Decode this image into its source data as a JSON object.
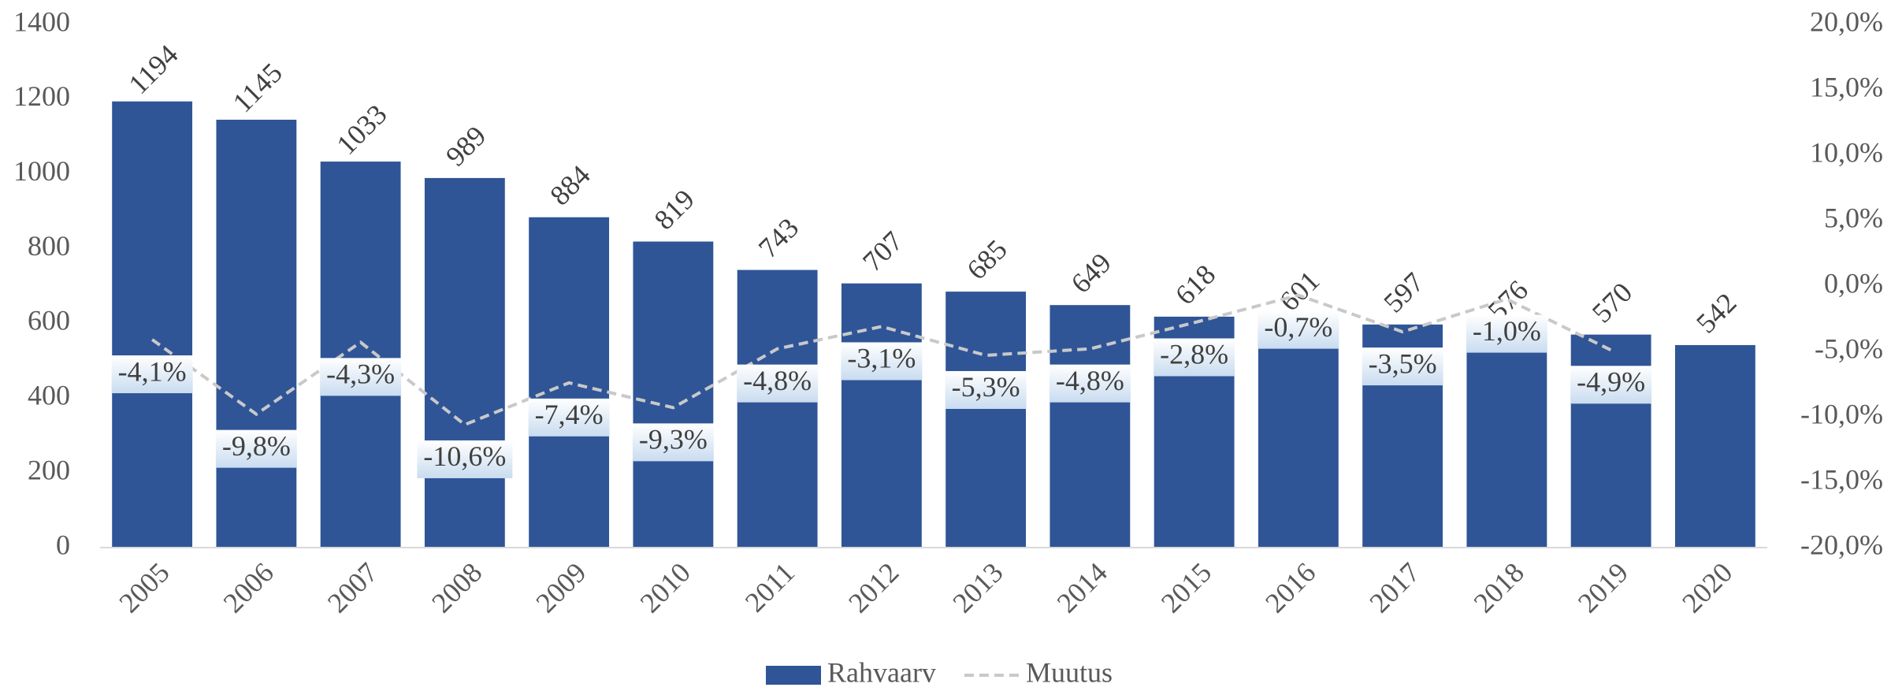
{
  "chart_data": {
    "type": "bar",
    "categories": [
      "2005",
      "2006",
      "2007",
      "2008",
      "2009",
      "2010",
      "2011",
      "2012",
      "2013",
      "2014",
      "2015",
      "2016",
      "2017",
      "2018",
      "2019",
      "2020"
    ],
    "series": [
      {
        "name": "Rahvaarv",
        "type": "bar",
        "color": "#2f5597",
        "values": [
          1194,
          1145,
          1033,
          989,
          884,
          819,
          743,
          707,
          685,
          649,
          618,
          601,
          597,
          576,
          570,
          542
        ]
      },
      {
        "name": "Muutus",
        "type": "line",
        "axis": "y2",
        "color": "#c9c9c9",
        "dashed": true,
        "values": [
          -4.1,
          -9.8,
          -4.3,
          -10.6,
          -7.4,
          -9.3,
          -4.8,
          -3.1,
          -5.3,
          -4.8,
          -2.8,
          -0.7,
          -3.5,
          -1.0,
          -4.9,
          null
        ],
        "value_labels": [
          "-4,1%",
          "-9,8%",
          "-4,3%",
          "-10,6%",
          "-7,4%",
          "-9,3%",
          "-4,8%",
          "-3,1%",
          "-5,3%",
          "-4,8%",
          "-2,8%",
          "-0,7%",
          "-3,5%",
          "-1,0%",
          "-4,9%",
          null
        ]
      }
    ],
    "ylim": [
      0,
      1400
    ],
    "yticks": [
      0,
      200,
      400,
      600,
      800,
      1000,
      1200,
      1400
    ],
    "y2lim": [
      -20,
      20
    ],
    "y2ticks": [
      {
        "value": -20,
        "label": "-20,0%"
      },
      {
        "value": -15,
        "label": "-15,0%"
      },
      {
        "value": -10,
        "label": "-10,0%"
      },
      {
        "value": -5,
        "label": "-5,0%"
      },
      {
        "value": 0,
        "label": "0,0%"
      },
      {
        "value": 5,
        "label": "5,0%"
      },
      {
        "value": 10,
        "label": "10,0%"
      },
      {
        "value": 15,
        "label": "15,0%"
      },
      {
        "value": 20,
        "label": "20,0%"
      }
    ],
    "legend": "bottom"
  }
}
